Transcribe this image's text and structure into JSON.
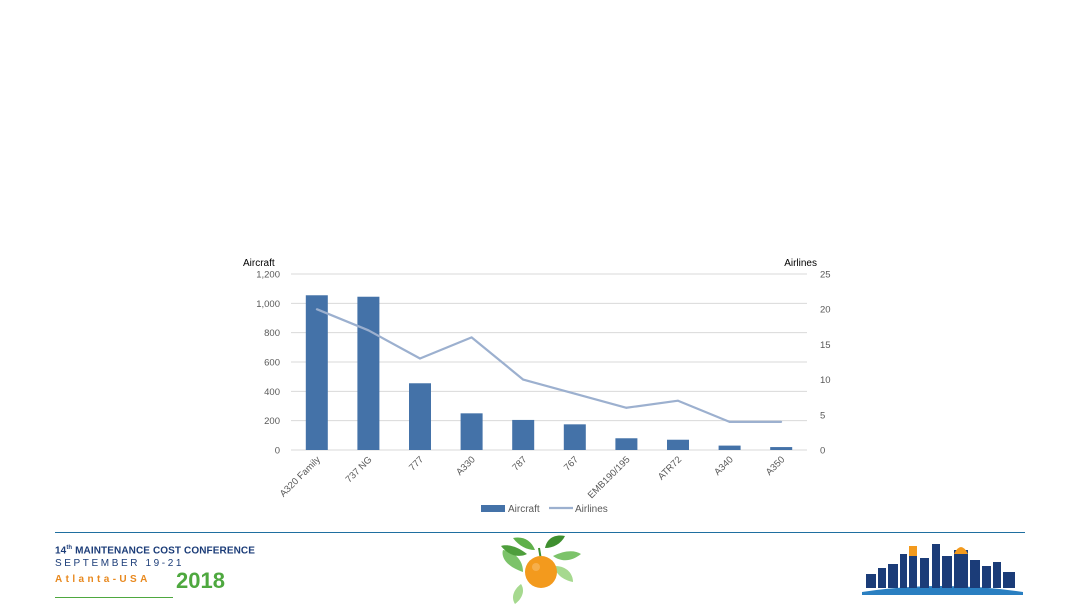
{
  "chart_data": {
    "type": "bar+line",
    "categories": [
      "A320 Family",
      "737 NG",
      "777",
      "A330",
      "787",
      "767",
      "EMB190/195",
      "ATR72",
      "A340",
      "A350"
    ],
    "series": [
      {
        "name": "Aircraft",
        "type": "bar",
        "axis": "left",
        "color": "#4472a8",
        "values": [
          1055,
          1045,
          455,
          250,
          205,
          175,
          80,
          70,
          30,
          20
        ]
      },
      {
        "name": "Airlines",
        "type": "line",
        "axis": "right",
        "color": "#9cb0cf",
        "values": [
          20,
          17,
          13,
          16,
          10,
          8,
          6,
          7,
          4,
          4
        ]
      }
    ],
    "y_left": {
      "label": "Aircraft",
      "lim": [
        0,
        1200
      ],
      "ticks": [
        "0",
        "200",
        "400",
        "600",
        "800",
        "1,000",
        "1,200"
      ]
    },
    "y_right": {
      "label": "Airlines",
      "lim": [
        0,
        25
      ],
      "ticks": [
        "0",
        "5",
        "10",
        "15",
        "20",
        "25"
      ]
    },
    "grid": true,
    "legend_position": "bottom"
  },
  "footer": {
    "conference_num": "14",
    "conference_sup": "th",
    "conference_title": " MAINTENANCE COST CONFERENCE",
    "dates": "SEPTEMBER 19-21",
    "location": "Atlanta-USA",
    "year": "2018"
  }
}
